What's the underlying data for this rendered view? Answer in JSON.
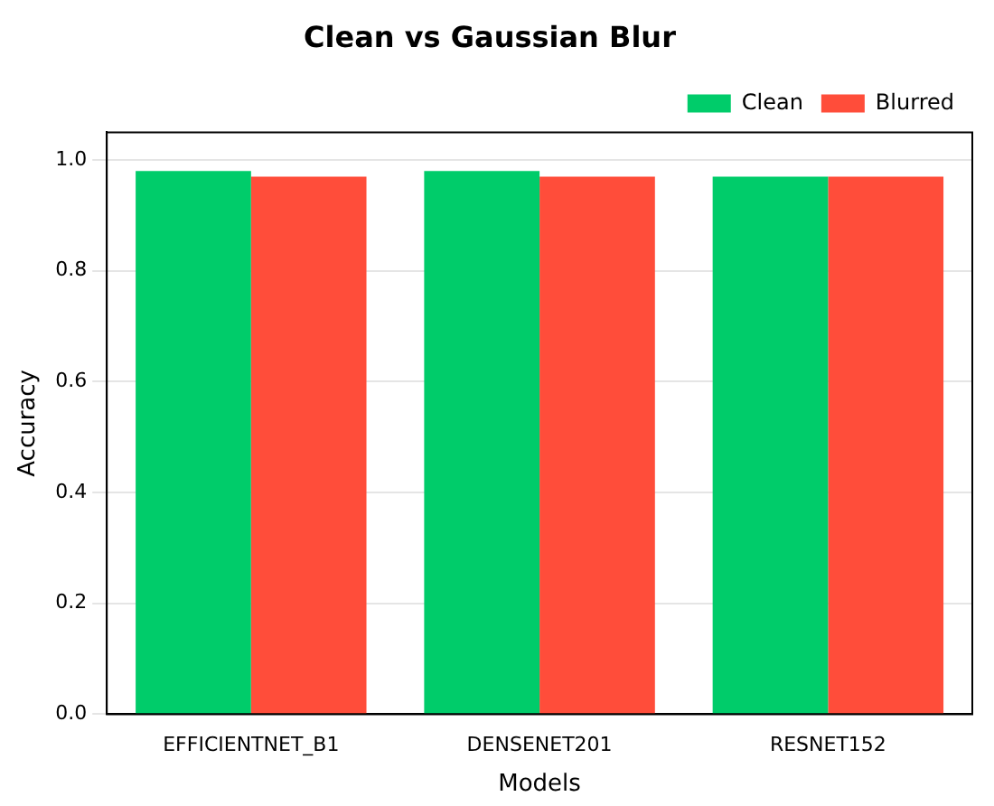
{
  "chart_data": {
    "type": "bar",
    "title": "Clean vs Gaussian Blur",
    "xlabel": "Models",
    "ylabel": "Accuracy",
    "categories": [
      "EFFICIENTNET_B1",
      "DENSENET201",
      "RESNET152"
    ],
    "series": [
      {
        "name": "Clean",
        "color": "#00cc6a",
        "values": [
          0.98,
          0.98,
          0.97
        ]
      },
      {
        "name": "Blurred",
        "color": "#ff4d3a",
        "values": [
          0.97,
          0.97,
          0.97
        ]
      }
    ],
    "ylim": [
      0,
      1.05
    ],
    "yticks": [
      {
        "value": 0,
        "label": "0.0"
      },
      {
        "value": 0.2,
        "label": "0.2"
      },
      {
        "value": 0.4,
        "label": "0.4"
      },
      {
        "value": 0.6,
        "label": "0.6"
      },
      {
        "value": 0.8,
        "label": "0.8"
      },
      {
        "value": 1,
        "label": "1.0"
      }
    ],
    "grid": "y",
    "legend": "top right"
  }
}
